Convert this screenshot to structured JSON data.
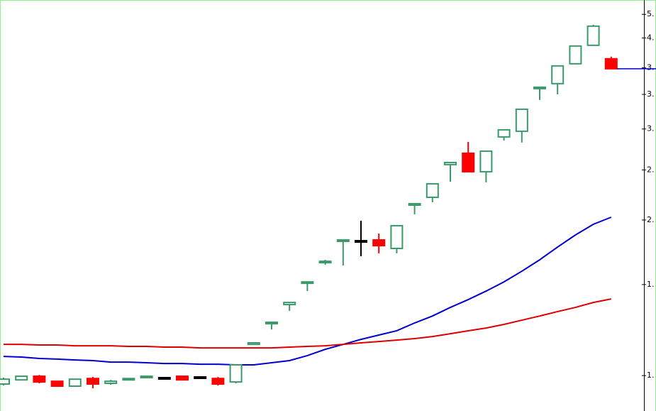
{
  "chart_data": {
    "type": "candlestick",
    "log_scale": true,
    "ylim": [
      0.854,
      5.33
    ],
    "yticks": [
      {
        "value": 5.0,
        "label": "5."
      },
      {
        "value": 4.5,
        "label": "4."
      },
      {
        "value": 3.94,
        "label": "3."
      },
      {
        "value": 3.5,
        "label": "3."
      },
      {
        "value": 3.0,
        "label": "3."
      },
      {
        "value": 2.5,
        "label": "2."
      },
      {
        "value": 2.0,
        "label": "2."
      },
      {
        "value": 1.5,
        "label": "1."
      },
      {
        "value": 1.0,
        "label": "1."
      }
    ],
    "up_color": "#3a9a6a",
    "down_color": "#ff0000",
    "flat_color": "#000000",
    "open": [
      0.963,
      0.981,
      0.997,
      0.975,
      0.954,
      0.987,
      0.966,
      0.981,
      0.991,
      0.991,
      0.997,
      0.994,
      0.987,
      0.972,
      1.149,
      1.26,
      1.372,
      1.509,
      1.654,
      1.819,
      1.824,
      1.83,
      1.762,
      2.137,
      2.213,
      2.56,
      2.693,
      2.48,
      2.896,
      2.97,
      3.591,
      3.672,
      4.012,
      4.356,
      4.102
    ],
    "high": [
      0.991,
      0.997,
      1.003,
      0.975,
      0.984,
      0.994,
      0.981,
      0.987,
      0.997,
      0.994,
      0.997,
      0.997,
      0.994,
      1.049,
      1.157,
      1.268,
      1.385,
      1.518,
      1.675,
      1.83,
      1.994,
      1.883,
      1.95,
      2.151,
      2.35,
      2.592,
      2.832,
      2.718,
      2.989,
      3.276,
      3.614,
      3.974,
      4.342,
      4.774,
      4.141
    ],
    "low": [
      0.957,
      0.981,
      0.966,
      0.954,
      0.954,
      0.945,
      0.96,
      0.981,
      0.991,
      0.987,
      0.981,
      0.987,
      0.957,
      0.966,
      1.149,
      1.228,
      1.334,
      1.457,
      1.638,
      1.633,
      1.702,
      1.724,
      1.724,
      2.051,
      2.165,
      2.372,
      2.48,
      2.365,
      2.85,
      2.824,
      3.414,
      3.501,
      3.999,
      4.356,
      3.924
    ],
    "close": [
      0.984,
      0.997,
      0.972,
      0.954,
      0.984,
      0.963,
      0.975,
      0.987,
      0.997,
      0.991,
      0.981,
      0.994,
      0.963,
      1.049,
      1.157,
      1.268,
      1.385,
      1.518,
      1.664,
      1.83,
      1.824,
      1.784,
      1.95,
      2.151,
      2.35,
      2.584,
      2.48,
      2.718,
      2.989,
      3.276,
      3.614,
      3.974,
      4.342,
      4.744,
      3.924
    ],
    "lines": [
      {
        "color": "#0000cc",
        "values": [
          1.089,
          1.086,
          1.079,
          1.076,
          1.072,
          1.069,
          1.062,
          1.062,
          1.059,
          1.055,
          1.055,
          1.052,
          1.052,
          1.049,
          1.049,
          1.059,
          1.069,
          1.093,
          1.124,
          1.149,
          1.175,
          1.198,
          1.221,
          1.264,
          1.304,
          1.355,
          1.403,
          1.457,
          1.518,
          1.592,
          1.675,
          1.773,
          1.871,
          1.962,
          2.025
        ]
      },
      {
        "color": "#dd0000",
        "values": [
          1.149,
          1.149,
          1.146,
          1.146,
          1.142,
          1.142,
          1.142,
          1.139,
          1.139,
          1.135,
          1.135,
          1.131,
          1.131,
          1.131,
          1.131,
          1.131,
          1.135,
          1.139,
          1.142,
          1.149,
          1.157,
          1.164,
          1.171,
          1.179,
          1.19,
          1.205,
          1.221,
          1.236,
          1.256,
          1.28,
          1.304,
          1.33,
          1.355,
          1.385,
          1.407
        ]
      }
    ],
    "last_price_color": "#0000cc"
  }
}
